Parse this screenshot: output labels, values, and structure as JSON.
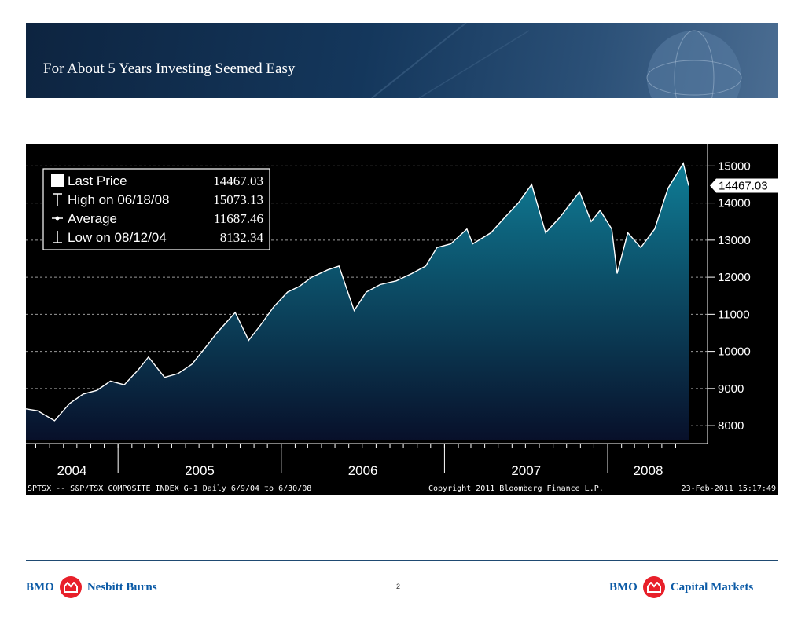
{
  "slide": {
    "title": "For About 5 Years Investing Seemed Easy",
    "page_number": "2"
  },
  "footer": {
    "left_logo": {
      "bank": "BMO",
      "division": "Nesbitt Burns"
    },
    "right_logo": {
      "bank": "BMO",
      "division": "Capital Markets"
    }
  },
  "colors": {
    "banner": "#14375c",
    "brand_blue": "#0b5aa6",
    "brand_red": "#e8202a",
    "fill_top": "#0f7d96",
    "fill_bottom": "#08102a"
  },
  "chart_data": {
    "type": "area",
    "title": "",
    "xlabel": "",
    "ylabel": "",
    "grid": true,
    "legend_position": "top-left",
    "legend": [
      {
        "marker": "square",
        "label": "Last Price",
        "value": "14467.03"
      },
      {
        "marker": "high",
        "label": "High on 06/18/08",
        "value": "15073.13"
      },
      {
        "marker": "average",
        "label": "Average",
        "value": "11687.46"
      },
      {
        "marker": "low",
        "label": "Low on 08/12/04",
        "value": "8132.34"
      }
    ],
    "last_price_label": "14467.03",
    "xlim": [
      "2004-06-09",
      "2008-06-30"
    ],
    "ylim": [
      7600,
      15600
    ],
    "y_ticks": [
      "15000",
      "14000",
      "13000",
      "12000",
      "11000",
      "10000",
      "9000",
      "8000"
    ],
    "x_tick_labels": [
      "2004",
      "2005",
      "2006",
      "2007",
      "2008"
    ],
    "footer_left": "SPTSX -- S&P/TSX COMPOSITE INDEX   G-1  Daily 6/9/04 to 6/30/08",
    "footer_center": "Copyright 2011 Bloomberg Finance L.P.",
    "footer_right": "23-Feb-2011 15:17:49",
    "series": [
      {
        "x": [
          "2004-06-09",
          "2004-07-05",
          "2004-08-12",
          "2004-09-15",
          "2004-10-15",
          "2004-11-15",
          "2004-12-15",
          "2005-01-15",
          "2005-02-15",
          "2005-03-10",
          "2005-04-15",
          "2005-05-15",
          "2005-06-15",
          "2005-07-15",
          "2005-08-10",
          "2005-09-20",
          "2005-10-20",
          "2005-11-15",
          "2005-12-15",
          "2006-01-15",
          "2006-02-10",
          "2006-03-10",
          "2006-04-15",
          "2006-05-10",
          "2006-06-13",
          "2006-07-10",
          "2006-08-10",
          "2006-09-15",
          "2006-10-20",
          "2006-11-20",
          "2006-12-15",
          "2007-01-15",
          "2007-02-20",
          "2007-03-05",
          "2007-04-15",
          "2007-05-15",
          "2007-06-15",
          "2007-07-15",
          "2007-08-15",
          "2007-09-15",
          "2007-10-30",
          "2007-11-25",
          "2007-12-15",
          "2008-01-10",
          "2008-01-22",
          "2008-02-15",
          "2008-03-15",
          "2008-04-15",
          "2008-05-15",
          "2008-06-18",
          "2008-06-30"
        ],
        "y": [
          8450,
          8400,
          8132,
          8600,
          8850,
          8950,
          9200,
          9100,
          9500,
          9850,
          9300,
          9400,
          9650,
          10100,
          10500,
          11050,
          10300,
          10700,
          11200,
          11600,
          11750,
          12000,
          12200,
          12300,
          11100,
          11600,
          11800,
          11900,
          12100,
          12300,
          12800,
          12900,
          13300,
          12900,
          13200,
          13600,
          14000,
          14500,
          13200,
          13600,
          14300,
          13500,
          13800,
          13300,
          12100,
          13200,
          12800,
          13300,
          14400,
          15073.13,
          14467.03
        ]
      }
    ]
  }
}
